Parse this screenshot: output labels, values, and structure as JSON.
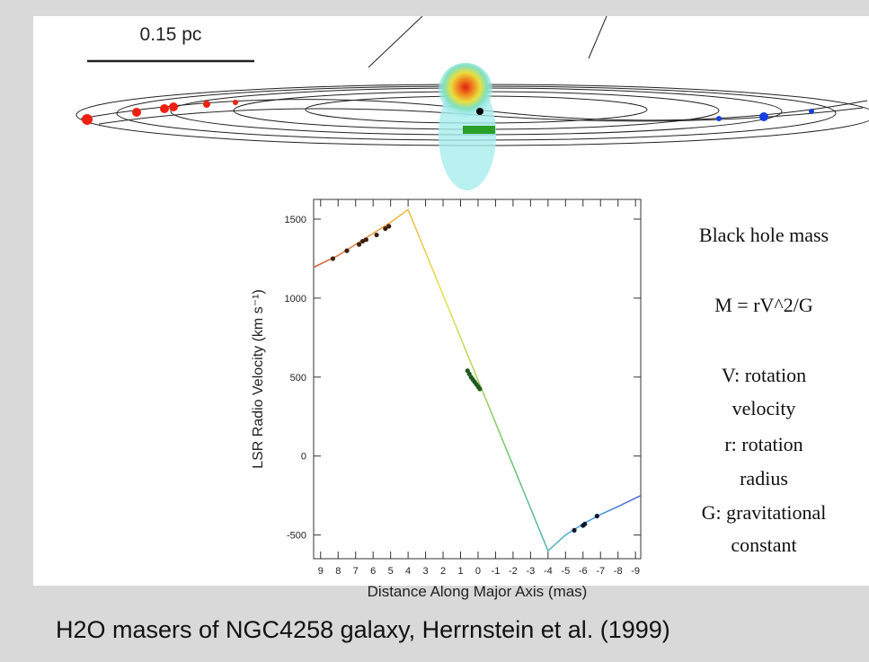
{
  "scale_label": "0.15 pc",
  "notes": [
    "Black hole mass",
    "M = rV^2/G",
    "V: rotation",
    "velocity",
    "r:  rotation",
    "radius",
    "G: gravitational",
    "constant"
  ],
  "caption": "H2O masers of NGC4258 galaxy, Herrnstein et al. (1999)",
  "chart_data": {
    "type": "line",
    "x_label": "Distance Along Major Axis (mas)",
    "y_label": "LSR Radio Velocity (km s⁻¹)",
    "xlim": [
      9.4,
      -9.3
    ],
    "ylim": [
      -650,
      1625
    ],
    "xticks": [
      9,
      8,
      7,
      6,
      5,
      4,
      3,
      2,
      1,
      0,
      -1,
      -2,
      -3,
      -4,
      -5,
      -6,
      -7,
      -8,
      -9
    ],
    "yticks": [
      -500,
      0,
      500,
      1000,
      1500
    ],
    "series": [
      {
        "style": "line",
        "gradient": [
          "#d9533a",
          "#f0a040",
          "#e6e04a",
          "#6cc46c",
          "#45a8e0",
          "#4a64d0"
        ],
        "x": [
          9.4,
          8,
          7,
          6,
          5,
          4,
          -4,
          -5,
          -6,
          -7,
          -8,
          -9.3
        ],
        "values": [
          1195,
          1270,
          1340,
          1410,
          1480,
          1560,
          -600,
          -500,
          -430,
          -370,
          -320,
          -250
        ]
      },
      {
        "style": "markers",
        "color": "#3a2010",
        "x": [
          8.3,
          7.5,
          6.8,
          6.6,
          6.4,
          5.8,
          5.3,
          5.1
        ],
        "values": [
          1250,
          1300,
          1340,
          1360,
          1370,
          1400,
          1440,
          1455
        ]
      },
      {
        "style": "markers",
        "color": "#1f5a1f",
        "x": [
          0.6,
          0.5,
          0.4,
          0.3,
          0.2,
          0.1,
          0.0,
          -0.1
        ],
        "values": [
          540,
          520,
          500,
          485,
          470,
          455,
          440,
          425
        ]
      },
      {
        "style": "markers",
        "color": "#101830",
        "x": [
          -5.5,
          -6.0,
          -6.1,
          -6.8
        ],
        "values": [
          -470,
          -440,
          -430,
          -380
        ]
      }
    ]
  }
}
